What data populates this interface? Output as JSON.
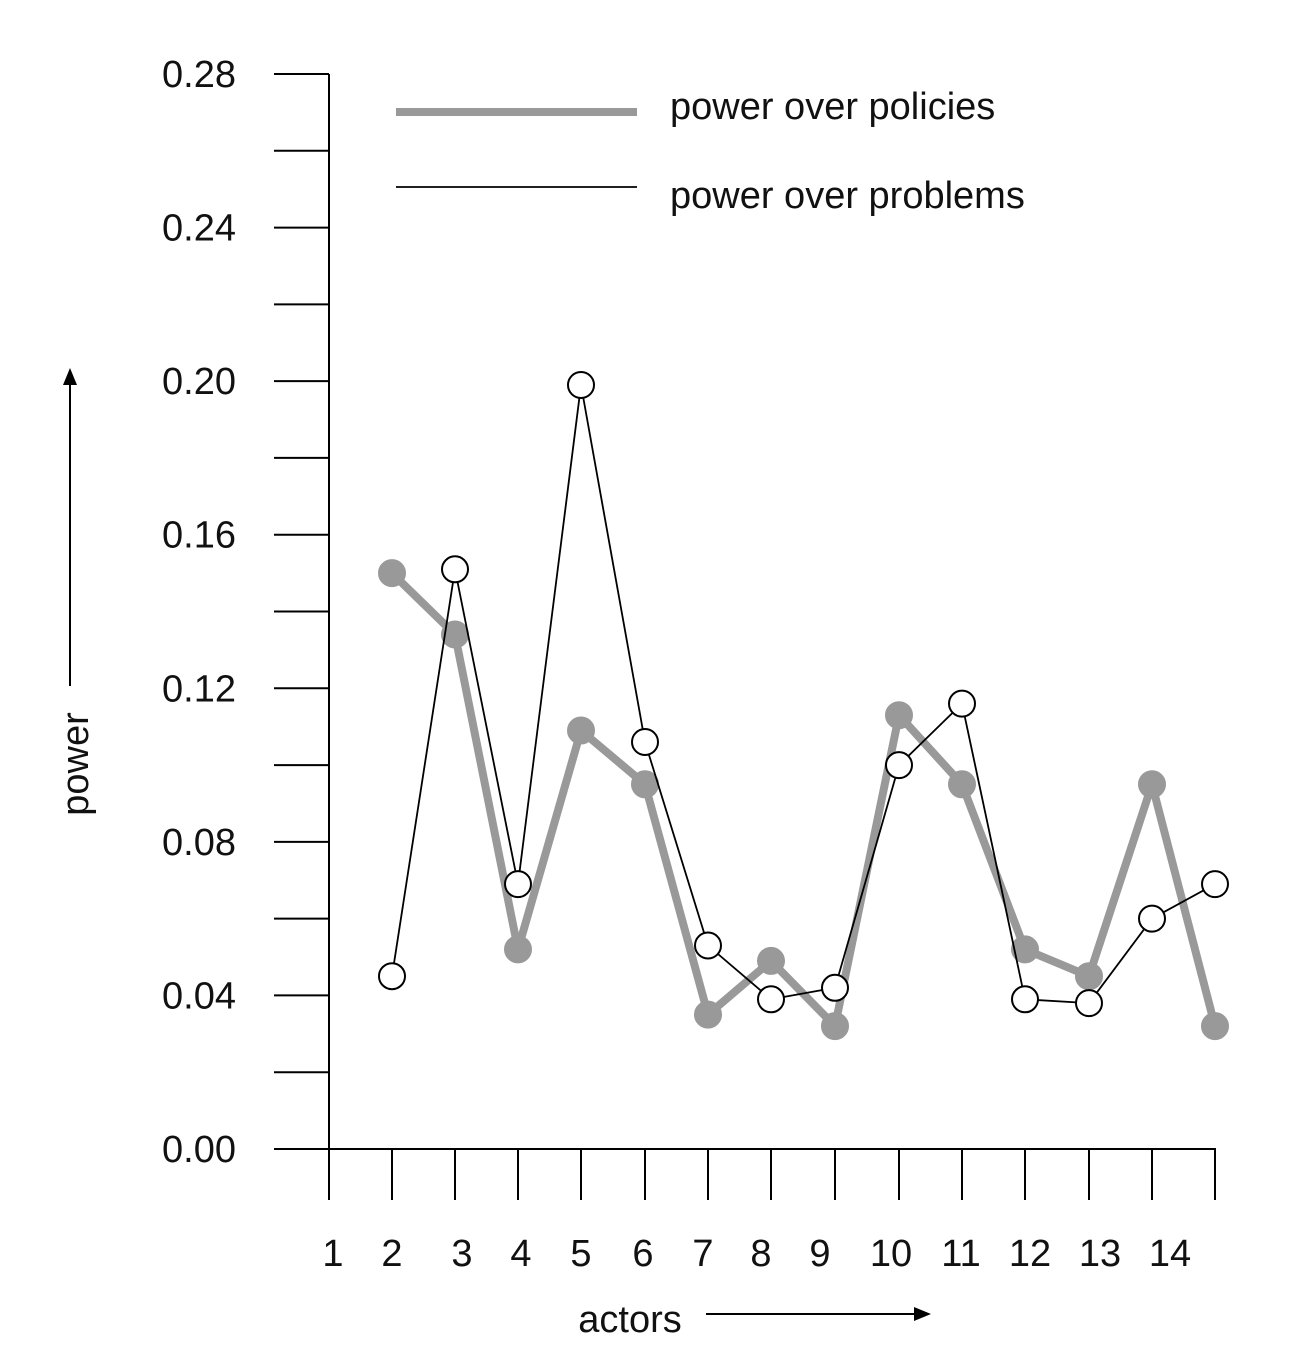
{
  "chart_data": {
    "type": "line",
    "xlabel": "actors",
    "ylabel": "power",
    "ylim": [
      0,
      0.28
    ],
    "y_ticks": [
      "0.00",
      "0.04",
      "0.08",
      "0.12",
      "0.16",
      "0.20",
      "0.24",
      "0.28"
    ],
    "x_tick_labels": [
      "1",
      "2",
      "3",
      "4",
      "5",
      "6",
      "7",
      "8",
      "9",
      "10",
      "11",
      "12",
      "13",
      "14"
    ],
    "grid": false,
    "legend_position": "top",
    "series": [
      {
        "name": "power over policies",
        "color": "#999999",
        "marker": "filled-circle",
        "values": [
          0.15,
          0.134,
          0.052,
          0.109,
          0.095,
          0.035,
          0.049,
          0.032,
          0.113,
          0.095,
          0.052,
          0.045,
          0.095,
          0.032
        ]
      },
      {
        "name": "power over problems",
        "color": "#000000",
        "marker": "open-circle",
        "values": [
          0.045,
          0.151,
          0.069,
          0.199,
          0.106,
          0.053,
          0.039,
          0.042,
          0.1,
          0.116,
          0.039,
          0.038,
          0.06,
          0.069
        ]
      }
    ]
  }
}
